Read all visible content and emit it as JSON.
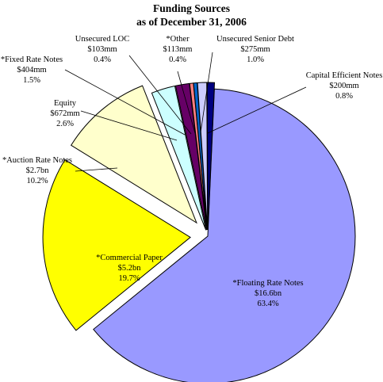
{
  "chart_data": {
    "type": "pie",
    "title": "Funding Sources",
    "subtitle": "as of December 31, 2006",
    "slices": [
      {
        "name": "*Floating Rate Notes",
        "amount": "$16.6bn",
        "pct_label": "63.4%",
        "value": 63.4,
        "color": "#9999ff",
        "exploded": false
      },
      {
        "name": "*Commercial Paper",
        "amount": "$5.2bn",
        "pct_label": "19.7%",
        "value": 19.7,
        "color": "#ffff00",
        "exploded": true
      },
      {
        "name": "*Auction Rate Notes",
        "amount": "$2.7bn",
        "pct_label": "10.2%",
        "value": 10.2,
        "color": "#ffffcc",
        "exploded": true
      },
      {
        "name": "Equity",
        "amount": "$672mm",
        "pct_label": "2.6%",
        "value": 2.6,
        "color": "#ccffff",
        "exploded": true
      },
      {
        "name": "*Fixed Rate Notes",
        "amount": "$404mm",
        "pct_label": "1.5%",
        "value": 1.5,
        "color": "#660066",
        "exploded": true
      },
      {
        "name": "Unsecured LOC",
        "amount": "$103mm",
        "pct_label": "0.4%",
        "value": 0.4,
        "color": "#ff8080",
        "exploded": true
      },
      {
        "name": "*Other",
        "amount": "$113mm",
        "pct_label": "0.4%",
        "value": 0.4,
        "color": "#0066cc",
        "exploded": true
      },
      {
        "name": "Unsecured Senior Debt",
        "amount": "$275mm",
        "pct_label": "1.0%",
        "value": 1.0,
        "color": "#ccccff",
        "exploded": true
      },
      {
        "name": "Capital Efficient Notes",
        "amount": "$200mm",
        "pct_label": "0.8%",
        "value": 0.8,
        "color": "#000080",
        "exploded": true
      }
    ]
  }
}
